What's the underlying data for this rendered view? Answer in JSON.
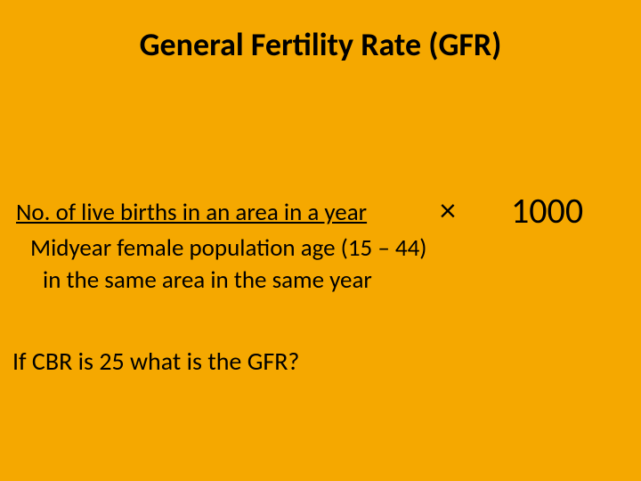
{
  "slide": {
    "background_color": "#f5a800",
    "text_color": "#000000",
    "title": "General Fertility Rate (GFR)",
    "title_fontsize": 36,
    "title_fontweight": 700,
    "formula": {
      "numerator": "No. of live births in an area in a year",
      "numerator_underline": true,
      "times_symbol": "×",
      "times_fontsize": 36,
      "multiplier": "1000",
      "multiplier_fontsize": 40,
      "denominator_line1": "Midyear female population age (15 – 44)",
      "denominator_line2": "in the same area in the same year",
      "body_fontsize": 27
    },
    "question": "If CBR is 25 what is the GFR?",
    "question_fontsize": 28
  }
}
